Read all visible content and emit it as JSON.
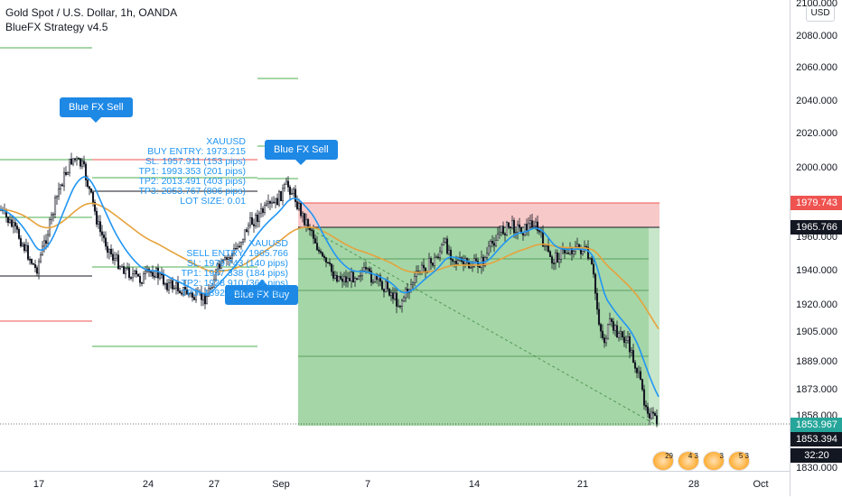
{
  "legend": {
    "title": "Gold Spot / U.S. Dollar, 1h, OANDA",
    "strategy": "BlueFX Strategy v4.5"
  },
  "currency": "USD",
  "price_ticks": [
    "2100.000",
    "2080.000",
    "2060.000",
    "2040.000",
    "2020.000",
    "2000.000",
    "1960.000",
    "1940.000",
    "1920.000",
    "1905.000",
    "1889.000",
    "1873.000",
    "1858.000",
    "1830.000"
  ],
  "price_tags": [
    {
      "text": "1979.743",
      "color": "#ef5350"
    },
    {
      "text": "1965.766",
      "color": "#131722"
    },
    {
      "text": "1853.967",
      "color": "#26a69a"
    },
    {
      "text": "1853.394",
      "color": "#131722"
    },
    {
      "text": "32:20",
      "color": "#131722"
    }
  ],
  "time_ticks": [
    "17",
    "24",
    "27",
    "Sep",
    "7",
    "14",
    "21",
    "28",
    "Oct"
  ],
  "signals": {
    "sell1": "Blue FX Sell",
    "sell2": "Blue FX Sell",
    "buy": "Blue FX Buy"
  },
  "sell_info": [
    "XAUUSD",
    "BUY ENTRY: 1973.215",
    "SL: 1957.911 (153 pips)",
    "TP1: 1993.353 (201 pips)",
    "TP2: 2013.491 (403 pips)",
    "TP3: 2053.767 (806 pips)",
    "LOT SIZE: 0.01"
  ],
  "buy_info": [
    "XAUUSD",
    "SELL ENTRY: 1965.766",
    "SL: 1979.743 (140 pips)",
    "TP1: 1947.338 (184 pips)",
    "TP2: 1928.910 (369 pips)",
    "TP3: 1892.055 (737 pips)"
  ],
  "event_icons": [
    "29",
    "4 3",
    "3",
    "5 3"
  ],
  "colors": {
    "up": "#131722",
    "ema_fast": "#2196f3",
    "ema_slow": "#e6a23c",
    "profit": "#a5d6a7",
    "loss": "#ffcdd2"
  }
}
